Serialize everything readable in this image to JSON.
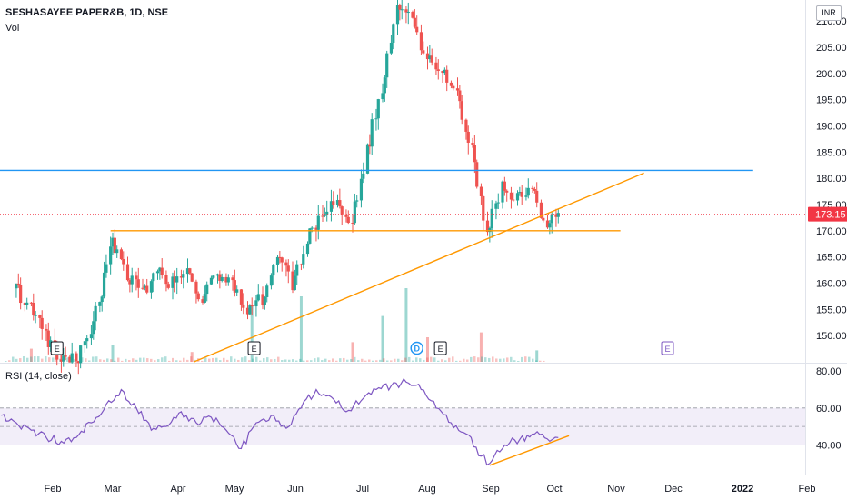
{
  "header": {
    "title": "SESHASAYEE PAPER&B, 1D, NSE",
    "volume_label": "Vol",
    "rsi_label": "RSI (14, close)",
    "currency": "INR"
  },
  "colors": {
    "up": "#26a69a",
    "down": "#ef5350",
    "resistance": "#2196f3",
    "trendline": "#ff9800",
    "rsi_line": "#7e57c2",
    "rsi_band": "#7e57c2",
    "price_tag": "#f23645"
  },
  "chart_data": [
    {
      "type": "candlestick",
      "title": "SESHASAYEE PAPER&B, 1D, NSE",
      "x_ticks": [
        "Feb",
        "Mar",
        "Apr",
        "May",
        "Jun",
        "Jul",
        "Aug",
        "Sep",
        "Oct",
        "Nov",
        "Dec",
        "2022",
        "Feb"
      ],
      "y_ticks": [
        150,
        155,
        160,
        165,
        170,
        175,
        180,
        185,
        190,
        195,
        200,
        205,
        210
      ],
      "y_tick_labels": [
        "150.00",
        "155.00",
        "160.00",
        "165.00",
        "170.00",
        "175.00",
        "180.00",
        "185.00",
        "190.00",
        "195.00",
        "200.00",
        "205.00",
        "210.00"
      ],
      "ylim": [
        145,
        214
      ],
      "last_price": "173.15",
      "close_series": [
        {
          "date": "2021-01-15",
          "close": 159
        },
        {
          "date": "2021-01-22",
          "close": 155
        },
        {
          "date": "2021-01-29",
          "close": 150
        },
        {
          "date": "2021-02-05",
          "close": 146
        },
        {
          "date": "2021-02-12",
          "close": 145
        },
        {
          "date": "2021-02-19",
          "close": 150
        },
        {
          "date": "2021-02-24",
          "close": 158
        },
        {
          "date": "2021-03-01",
          "close": 168
        },
        {
          "date": "2021-03-08",
          "close": 162
        },
        {
          "date": "2021-03-15",
          "close": 158
        },
        {
          "date": "2021-03-22",
          "close": 162
        },
        {
          "date": "2021-03-29",
          "close": 160
        },
        {
          "date": "2021-04-05",
          "close": 163
        },
        {
          "date": "2021-04-12",
          "close": 157
        },
        {
          "date": "2021-04-19",
          "close": 162
        },
        {
          "date": "2021-04-26",
          "close": 160
        },
        {
          "date": "2021-05-03",
          "close": 155
        },
        {
          "date": "2021-05-10",
          "close": 157
        },
        {
          "date": "2021-05-17",
          "close": 165
        },
        {
          "date": "2021-05-24",
          "close": 160
        },
        {
          "date": "2021-05-31",
          "close": 168
        },
        {
          "date": "2021-06-07",
          "close": 174
        },
        {
          "date": "2021-06-14",
          "close": 176
        },
        {
          "date": "2021-06-21",
          "close": 172
        },
        {
          "date": "2021-06-28",
          "close": 185
        },
        {
          "date": "2021-07-05",
          "close": 197
        },
        {
          "date": "2021-07-12",
          "close": 212
        },
        {
          "date": "2021-07-19",
          "close": 210
        },
        {
          "date": "2021-07-26",
          "close": 203
        },
        {
          "date": "2021-08-02",
          "close": 200
        },
        {
          "date": "2021-08-09",
          "close": 196
        },
        {
          "date": "2021-08-16",
          "close": 185
        },
        {
          "date": "2021-08-23",
          "close": 170
        },
        {
          "date": "2021-08-30",
          "close": 178
        },
        {
          "date": "2021-09-06",
          "close": 176
        },
        {
          "date": "2021-09-13",
          "close": 178
        },
        {
          "date": "2021-09-20",
          "close": 171
        },
        {
          "date": "2021-09-27",
          "close": 173.15
        }
      ],
      "volume": [
        {
          "date": "2021-01-22",
          "volume": 8,
          "direction": "down"
        },
        {
          "date": "2021-02-05",
          "volume": 5,
          "direction": "down"
        },
        {
          "date": "2021-03-01",
          "volume": 10,
          "direction": "up"
        },
        {
          "date": "2021-04-07",
          "volume": 6,
          "direction": "down"
        },
        {
          "date": "2021-05-05",
          "volume": 35,
          "direction": "up"
        },
        {
          "date": "2021-05-28",
          "volume": 40,
          "direction": "up"
        },
        {
          "date": "2021-06-21",
          "volume": 12,
          "direction": "down"
        },
        {
          "date": "2021-07-05",
          "volume": 28,
          "direction": "up"
        },
        {
          "date": "2021-07-16",
          "volume": 45,
          "direction": "up"
        },
        {
          "date": "2021-07-26",
          "volume": 15,
          "direction": "down"
        },
        {
          "date": "2021-08-20",
          "volume": 18,
          "direction": "down"
        },
        {
          "date": "2021-09-15",
          "volume": 7,
          "direction": "up"
        }
      ],
      "event_markers": [
        {
          "date": "2021-02-03",
          "label": "E"
        },
        {
          "date": "2021-05-06",
          "label": "E"
        },
        {
          "date": "2021-07-21",
          "label": "D"
        },
        {
          "date": "2021-08-01",
          "label": "E"
        },
        {
          "date": "2021-11-15",
          "label": "E"
        }
      ],
      "drawings": [
        {
          "kind": "horizontal",
          "level": 181.5,
          "from": "2021-01-01",
          "to": "2021-12-25",
          "color": "#2196f3"
        },
        {
          "kind": "horizontal",
          "level": 170,
          "from": "2021-02-28",
          "to": "2021-10-24",
          "color": "#ff9800"
        },
        {
          "kind": "trendline",
          "from": [
            "2021-04-08",
            145
          ],
          "to": [
            "2021-11-04",
            181
          ],
          "color": "#ff9800"
        }
      ]
    },
    {
      "type": "line",
      "title": "RSI (14, close)",
      "y_ticks": [
        40,
        60,
        80
      ],
      "y_tick_labels": [
        "40.00",
        "60.00",
        "80.00"
      ],
      "ylim": [
        24,
        84
      ],
      "band": [
        40,
        60
      ],
      "midline": 50,
      "series": [
        {
          "date": "2021-01-08",
          "value": 56
        },
        {
          "date": "2021-01-15",
          "value": 52
        },
        {
          "date": "2021-01-22",
          "value": 48
        },
        {
          "date": "2021-01-29",
          "value": 44
        },
        {
          "date": "2021-02-05",
          "value": 42
        },
        {
          "date": "2021-02-12",
          "value": 44
        },
        {
          "date": "2021-02-19",
          "value": 52
        },
        {
          "date": "2021-02-26",
          "value": 62
        },
        {
          "date": "2021-03-05",
          "value": 70
        },
        {
          "date": "2021-03-12",
          "value": 60
        },
        {
          "date": "2021-03-19",
          "value": 48
        },
        {
          "date": "2021-03-26",
          "value": 50
        },
        {
          "date": "2021-04-02",
          "value": 58
        },
        {
          "date": "2021-04-09",
          "value": 52
        },
        {
          "date": "2021-04-16",
          "value": 55
        },
        {
          "date": "2021-04-23",
          "value": 48
        },
        {
          "date": "2021-04-30",
          "value": 38
        },
        {
          "date": "2021-05-07",
          "value": 52
        },
        {
          "date": "2021-05-14",
          "value": 56
        },
        {
          "date": "2021-05-21",
          "value": 49
        },
        {
          "date": "2021-05-28",
          "value": 60
        },
        {
          "date": "2021-06-04",
          "value": 70
        },
        {
          "date": "2021-06-11",
          "value": 66
        },
        {
          "date": "2021-06-18",
          "value": 58
        },
        {
          "date": "2021-06-25",
          "value": 64
        },
        {
          "date": "2021-07-02",
          "value": 70
        },
        {
          "date": "2021-07-09",
          "value": 72
        },
        {
          "date": "2021-07-16",
          "value": 74
        },
        {
          "date": "2021-07-23",
          "value": 70
        },
        {
          "date": "2021-07-30",
          "value": 60
        },
        {
          "date": "2021-08-06",
          "value": 52
        },
        {
          "date": "2021-08-13",
          "value": 46
        },
        {
          "date": "2021-08-20",
          "value": 34
        },
        {
          "date": "2021-08-24",
          "value": 30
        },
        {
          "date": "2021-08-31",
          "value": 40
        },
        {
          "date": "2021-09-07",
          "value": 43
        },
        {
          "date": "2021-09-14",
          "value": 46
        },
        {
          "date": "2021-09-21",
          "value": 42
        },
        {
          "date": "2021-09-25",
          "value": 44
        }
      ],
      "drawings": [
        {
          "kind": "trendline",
          "from": [
            "2021-08-24",
            29
          ],
          "to": [
            "2021-09-30",
            45
          ],
          "color": "#ff9800"
        }
      ]
    }
  ]
}
